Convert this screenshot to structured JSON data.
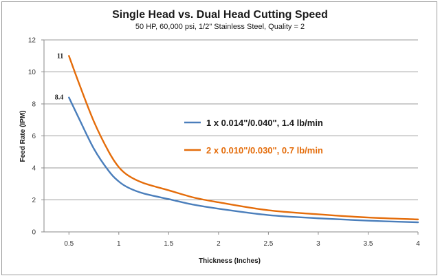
{
  "chart_data": {
    "type": "line",
    "title": "Single Head vs. Dual Head Cutting Speed",
    "subtitle": "50 HP, 60,000 psi, 1/2\" Stainless Steel, Quality = 2",
    "xlabel": "Thickness (Inches)",
    "ylabel": "Feed Rate (IPM)",
    "xlim": [
      0.25,
      4
    ],
    "ylim": [
      0,
      12
    ],
    "x_ticks": [
      "0.5",
      "1",
      "1.5",
      "2",
      "2.5",
      "3",
      "3.5",
      "4"
    ],
    "y_ticks": [
      "0",
      "2",
      "4",
      "6",
      "8",
      "10",
      "12"
    ],
    "grid": "horizontal",
    "legend": "right-center",
    "series": [
      {
        "name": "1 x 0.014\"/0.040\", 1.4 lb/min",
        "color": "#4a7ebb",
        "x": [
          0.5,
          0.6,
          0.75,
          0.9,
          1.0,
          1.1,
          1.25,
          1.5,
          1.75,
          2.0,
          2.5,
          3.0,
          3.5,
          4.0
        ],
        "y": [
          8.4,
          7.1,
          5.2,
          3.8,
          3.15,
          2.75,
          2.4,
          2.05,
          1.7,
          1.45,
          1.05,
          0.85,
          0.7,
          0.6
        ]
      },
      {
        "name": "2 x 0.010\"/0.030\", 0.7 lb/min",
        "color": "#e46c0a",
        "x": [
          0.5,
          0.6,
          0.75,
          0.9,
          1.0,
          1.1,
          1.25,
          1.5,
          1.75,
          2.0,
          2.5,
          3.0,
          3.5,
          4.0
        ],
        "y": [
          11,
          9.3,
          6.9,
          5.0,
          4.05,
          3.5,
          3.05,
          2.6,
          2.15,
          1.85,
          1.35,
          1.1,
          0.9,
          0.78
        ]
      }
    ],
    "data_labels": [
      {
        "series": 0,
        "x": 0.5,
        "text": "8.4"
      },
      {
        "series": 1,
        "x": 0.5,
        "text": "11"
      }
    ]
  }
}
